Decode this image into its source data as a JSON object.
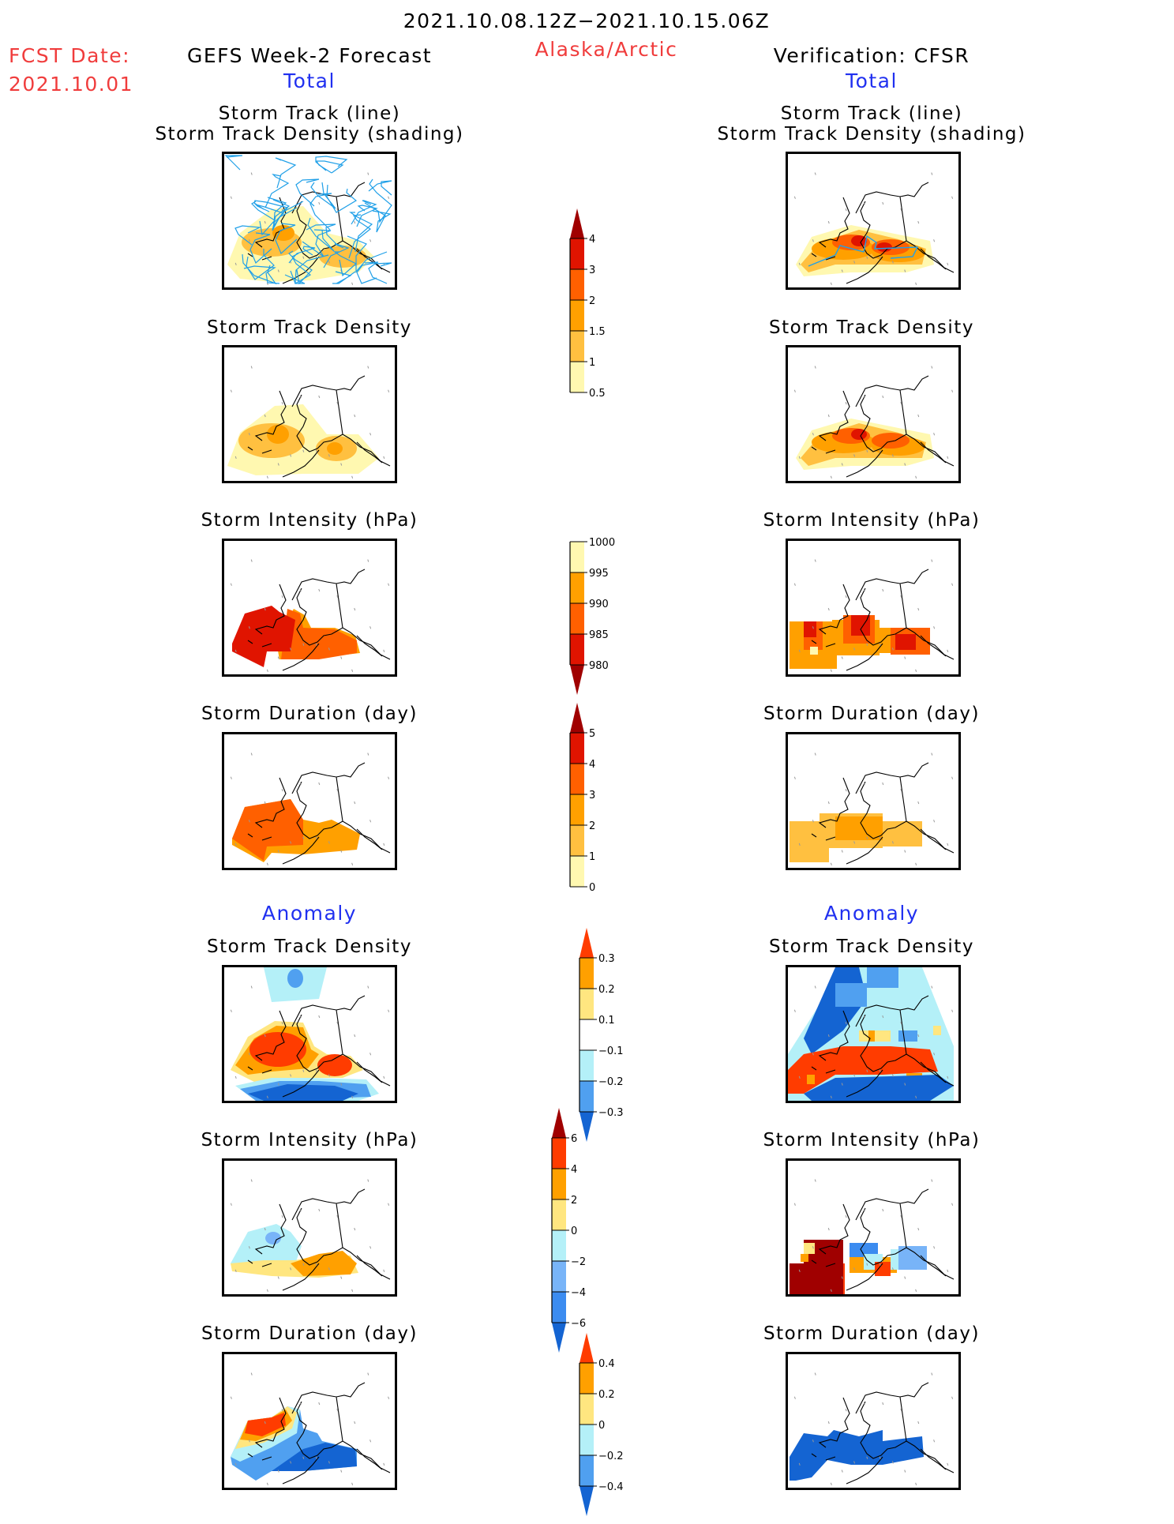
{
  "header": {
    "period": "2021.10.08.12Z−2021.10.15.06Z",
    "region": "Alaska/Arctic",
    "fcst_label": "FCST Date:",
    "fcst_date": "2021.10.01",
    "left_title": "GEFS Week-2 Forecast",
    "right_title": "Verification: CFSR",
    "total_label_left": "Total",
    "total_label_right": "Total",
    "anomaly_label_left": "Anomaly",
    "anomaly_label_right": "Anomaly"
  },
  "panel_titles": {
    "track_line": "Storm Track (line)",
    "track_density_shading": "Storm Track Density (shading)",
    "track_density": "Storm Track Density",
    "intensity": "Storm Intensity (hPa)",
    "duration": "Storm Duration (day)"
  },
  "chart_data": [
    {
      "type": "heatmap",
      "title": "Storm Track (line) / Storm Track Density (shading)",
      "column": "GEFS Week-2 Forecast",
      "section": "Total",
      "colorbar": "density"
    },
    {
      "type": "heatmap",
      "title": "Storm Track (line) / Storm Track Density (shading)",
      "column": "Verification: CFSR",
      "section": "Total",
      "colorbar": "density"
    },
    {
      "type": "heatmap",
      "title": "Storm Track Density",
      "column": "GEFS Week-2 Forecast",
      "section": "Total",
      "colorbar": "density"
    },
    {
      "type": "heatmap",
      "title": "Storm Track Density",
      "column": "Verification: CFSR",
      "section": "Total",
      "colorbar": "density"
    },
    {
      "type": "heatmap",
      "title": "Storm Intensity (hPa)",
      "column": "GEFS Week-2 Forecast",
      "section": "Total",
      "colorbar": "intensity"
    },
    {
      "type": "heatmap",
      "title": "Storm Intensity (hPa)",
      "column": "Verification: CFSR",
      "section": "Total",
      "colorbar": "intensity"
    },
    {
      "type": "heatmap",
      "title": "Storm Duration (day)",
      "column": "GEFS Week-2 Forecast",
      "section": "Total",
      "colorbar": "duration"
    },
    {
      "type": "heatmap",
      "title": "Storm Duration (day)",
      "column": "Verification: CFSR",
      "section": "Total",
      "colorbar": "duration"
    },
    {
      "type": "heatmap",
      "title": "Storm Track Density",
      "column": "GEFS Week-2 Forecast",
      "section": "Anomaly",
      "colorbar": "density_anom"
    },
    {
      "type": "heatmap",
      "title": "Storm Track Density",
      "column": "Verification: CFSR",
      "section": "Anomaly",
      "colorbar": "density_anom"
    },
    {
      "type": "heatmap",
      "title": "Storm Intensity (hPa)",
      "column": "GEFS Week-2 Forecast",
      "section": "Anomaly",
      "colorbar": "intensity_anom"
    },
    {
      "type": "heatmap",
      "title": "Storm Intensity (hPa)",
      "column": "Verification: CFSR",
      "section": "Anomaly",
      "colorbar": "intensity_anom"
    },
    {
      "type": "heatmap",
      "title": "Storm Duration (day)",
      "column": "GEFS Week-2 Forecast",
      "section": "Anomaly",
      "colorbar": "duration_anom"
    },
    {
      "type": "heatmap",
      "title": "Storm Duration (day)",
      "column": "Verification: CFSR",
      "section": "Anomaly",
      "colorbar": "duration_anom"
    }
  ],
  "colorbars": {
    "density": {
      "labels": [
        "0.5",
        "1",
        "1.5",
        "2",
        "3",
        "4"
      ],
      "colors": [
        "#fff8b0",
        "#ffc040",
        "#ffa000",
        "#ff6000",
        "#e01400"
      ],
      "over_color": "#a00000",
      "extend": "max"
    },
    "intensity": {
      "labels": [
        "1000",
        "995",
        "990",
        "985",
        "980"
      ],
      "colors": [
        "#fff8b0",
        "#ffa000",
        "#ff6000",
        "#e01400"
      ],
      "under_color": "#a00000",
      "extend": "min"
    },
    "duration": {
      "labels": [
        "0",
        "1",
        "2",
        "3",
        "4",
        "5"
      ],
      "colors": [
        "#fff8b0",
        "#ffc040",
        "#ffa000",
        "#ff6000",
        "#e01400"
      ],
      "over_color": "#a00000",
      "extend": "max"
    },
    "density_anom": {
      "labels": [
        "0.3",
        "0.2",
        "0.1",
        "−0.1",
        "−0.2",
        "−0.3"
      ],
      "colors": [
        "#ffa000",
        "#ffe680",
        "#ffffff",
        "#b4f0f8",
        "#50a0f0"
      ],
      "over_color": "#ff3c00",
      "under_color": "#1464d2",
      "extend": "both"
    },
    "intensity_anom": {
      "labels": [
        "6",
        "4",
        "2",
        "0",
        "−2",
        "−4",
        "−6"
      ],
      "colors": [
        "#ff3c00",
        "#ffa000",
        "#ffe680",
        "#b4f0f8",
        "#78b4f8",
        "#3c8cf0"
      ],
      "over_color": "#a00000",
      "under_color": "#1464d2",
      "extend": "both"
    },
    "duration_anom": {
      "labels": [
        "0.4",
        "0.2",
        "0",
        "−0.2",
        "−0.4"
      ],
      "colors": [
        "#ffa000",
        "#ffe680",
        "#b4f0f8",
        "#50a0f0"
      ],
      "over_color": "#ff3c00",
      "under_color": "#1464d2",
      "extend": "both"
    }
  },
  "colors": {
    "track_line": "#20a0e8",
    "coast": "#000000"
  }
}
